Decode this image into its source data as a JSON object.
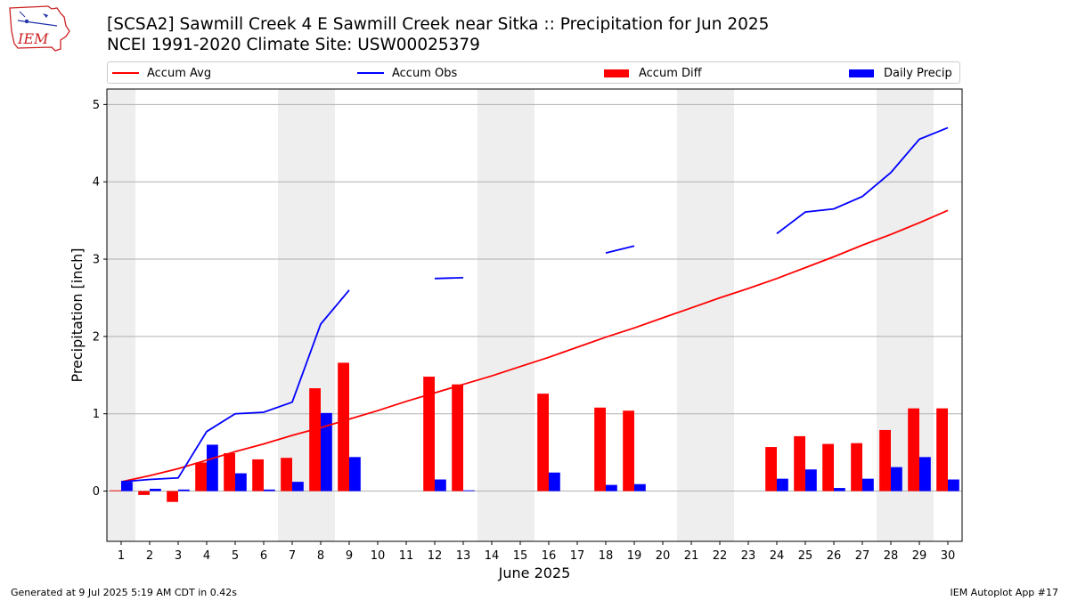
{
  "header": {
    "title": "[SCSA2] Sawmill Creek 4 E Sawmill Creek near Sitka :: Precipitation for Jun 2025",
    "subtitle": "NCEI 1991-2020 Climate Site: USW00025379",
    "logo_text": "IEM"
  },
  "footer": {
    "generated": "Generated at 9 Jul 2025 5:19 AM CDT in 0.42s",
    "app": "IEM Autoplot App #17"
  },
  "colors": {
    "accum_avg": "#ff0000",
    "accum_obs": "#0000ff",
    "accum_diff": "#ff0000",
    "daily_precip": "#0000ff",
    "weekend_shade": "#eeeeee",
    "grid": "#b0b0b0"
  },
  "chart_data": {
    "type": "bar",
    "title": "[SCSA2] Sawmill Creek 4 E Sawmill Creek near Sitka :: Precipitation for Jun 2025",
    "xlabel": "June 2025",
    "ylabel": "Precipitation [inch]",
    "ylim": [
      -0.65,
      5.2
    ],
    "yticks": [
      0,
      1,
      2,
      3,
      4,
      5
    ],
    "grid": "horizontal",
    "legend_placement": "top",
    "categories": [
      "1",
      "2",
      "3",
      "4",
      "5",
      "6",
      "7",
      "8",
      "9",
      "10",
      "11",
      "12",
      "13",
      "14",
      "15",
      "16",
      "17",
      "18",
      "19",
      "20",
      "21",
      "22",
      "23",
      "24",
      "25",
      "26",
      "27",
      "28",
      "29",
      "30"
    ],
    "weekend_days": [
      1,
      7,
      8,
      14,
      15,
      21,
      22,
      28,
      29
    ],
    "series": [
      {
        "name": "Accum Avg",
        "kind": "line",
        "color": "#ff0000",
        "values": [
          0.12,
          0.2,
          0.29,
          0.4,
          0.51,
          0.61,
          0.72,
          0.82,
          0.93,
          1.04,
          1.16,
          1.27,
          1.38,
          1.49,
          1.61,
          1.73,
          1.86,
          1.99,
          2.11,
          2.24,
          2.37,
          2.5,
          2.62,
          2.75,
          2.89,
          3.03,
          3.18,
          3.32,
          3.47,
          3.63
        ]
      },
      {
        "name": "Accum Obs",
        "kind": "line",
        "color": "#0000ff",
        "values": [
          0.12,
          0.15,
          0.17,
          0.77,
          1.0,
          1.02,
          1.15,
          2.16,
          2.6,
          null,
          null,
          2.75,
          2.76,
          null,
          null,
          null,
          null,
          3.08,
          3.17,
          null,
          null,
          null,
          null,
          3.33,
          3.61,
          3.65,
          3.81,
          4.12,
          4.55,
          4.7
        ]
      },
      {
        "name": "Accum Diff",
        "kind": "bar",
        "color": "#ff0000",
        "values": [
          0.01,
          -0.05,
          -0.14,
          0.37,
          0.49,
          0.41,
          0.43,
          1.33,
          1.66,
          null,
          null,
          1.48,
          1.38,
          null,
          null,
          1.26,
          null,
          1.08,
          1.04,
          null,
          null,
          null,
          null,
          0.57,
          0.71,
          0.61,
          0.62,
          0.79,
          1.07,
          1.07
        ]
      },
      {
        "name": "Daily Precip",
        "kind": "bar",
        "color": "#0000ff",
        "values": [
          0.12,
          0.03,
          0.02,
          0.6,
          0.23,
          0.02,
          0.12,
          1.01,
          0.44,
          null,
          null,
          0.15,
          0.01,
          null,
          null,
          0.24,
          null,
          0.08,
          0.09,
          null,
          null,
          null,
          null,
          0.16,
          0.28,
          0.04,
          0.16,
          0.31,
          0.44,
          0.15
        ]
      }
    ]
  }
}
